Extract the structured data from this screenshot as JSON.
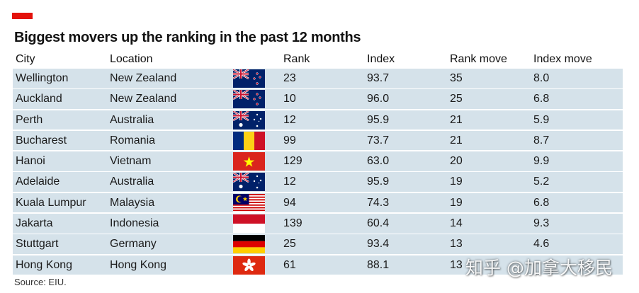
{
  "chart_data": {
    "type": "table",
    "title": "Biggest movers up the ranking in the past 12 months",
    "columns": [
      "City",
      "Location",
      "Rank",
      "Index",
      "Rank move",
      "Index move"
    ],
    "rows": [
      {
        "city": "Wellington",
        "location": "New Zealand",
        "flag": "new-zealand-flag",
        "rank": "23",
        "index": "93.7",
        "rank_move": "35",
        "index_move": "8.0"
      },
      {
        "city": "Auckland",
        "location": "New Zealand",
        "flag": "new-zealand-flag",
        "rank": "10",
        "index": "96.0",
        "rank_move": "25",
        "index_move": "6.8"
      },
      {
        "city": "Perth",
        "location": "Australia",
        "flag": "australia-flag",
        "rank": "12",
        "index": "95.9",
        "rank_move": "21",
        "index_move": "5.9"
      },
      {
        "city": "Bucharest",
        "location": "Romania",
        "flag": "romania-flag",
        "rank": "99",
        "index": "73.7",
        "rank_move": "21",
        "index_move": "8.7"
      },
      {
        "city": "Hanoi",
        "location": "Vietnam",
        "flag": "vietnam-flag",
        "rank": "129",
        "index": "63.0",
        "rank_move": "20",
        "index_move": "9.9"
      },
      {
        "city": "Adelaide",
        "location": "Australia",
        "flag": "australia-flag",
        "rank": "12",
        "index": "95.9",
        "rank_move": "19",
        "index_move": "5.2"
      },
      {
        "city": "Kuala Lumpur",
        "location": "Malaysia",
        "flag": "malaysia-flag",
        "rank": "94",
        "index": "74.3",
        "rank_move": "19",
        "index_move": "6.8"
      },
      {
        "city": "Jakarta",
        "location": "Indonesia",
        "flag": "indonesia-flag",
        "rank": "139",
        "index": "60.4",
        "rank_move": "14",
        "index_move": "9.3"
      },
      {
        "city": "Stuttgart",
        "location": "Germany",
        "flag": "germany-flag",
        "rank": "25",
        "index": "93.4",
        "rank_move": "13",
        "index_move": "4.6"
      },
      {
        "city": "Hong Kong",
        "location": "Hong Kong",
        "flag": "hong-kong-flag",
        "rank": "61",
        "index": "88.1",
        "rank_move": "13",
        "index_move": ""
      }
    ],
    "source": "Source: EIU.",
    "accent_color": "#e3120b",
    "row_color": "#d5e2ea"
  },
  "watermark": "知乎 @加拿大移民"
}
